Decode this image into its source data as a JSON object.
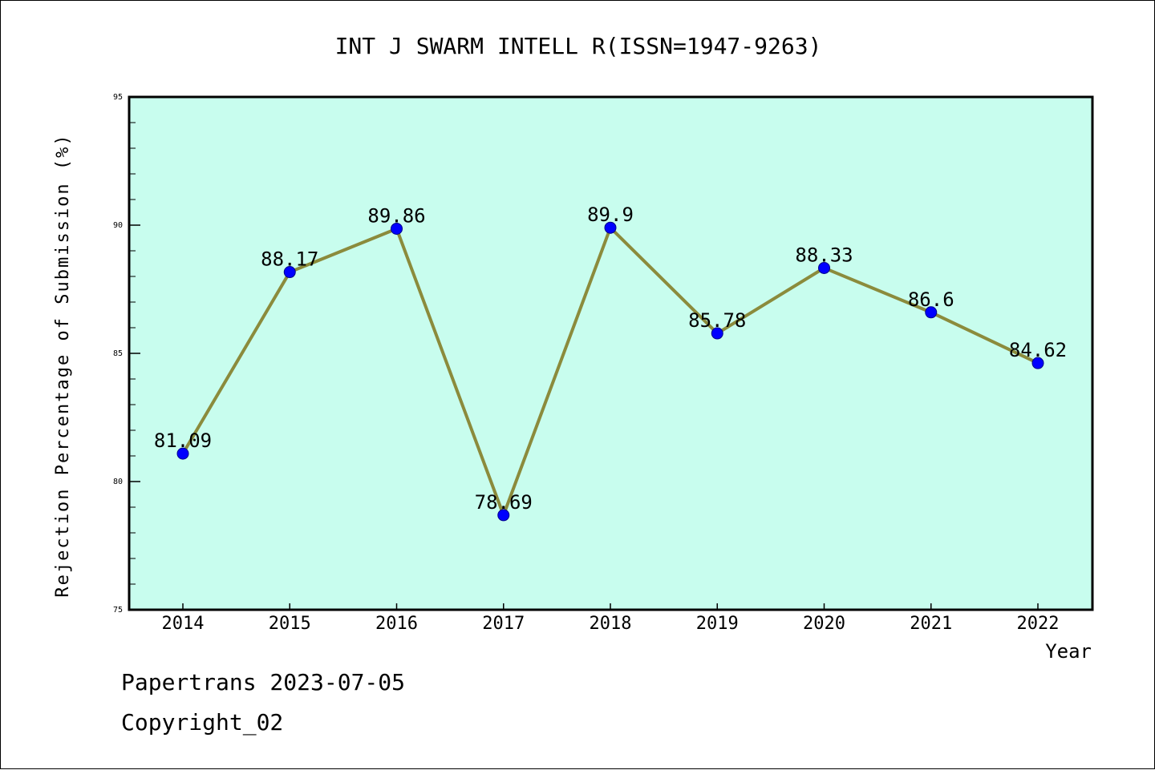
{
  "chart_data": {
    "type": "line",
    "title": "INT J SWARM INTELL R(ISSN=1947-9263)",
    "xlabel": "Year",
    "ylabel": "Rejection Percentage of Submission (%)",
    "categories": [
      "2014",
      "2015",
      "2016",
      "2017",
      "2018",
      "2019",
      "2020",
      "2021",
      "2022"
    ],
    "values": [
      81.09,
      88.17,
      89.86,
      78.69,
      89.9,
      85.78,
      88.33,
      86.6,
      84.62
    ],
    "data_labels": [
      "81.09",
      "88.17",
      "89.86",
      "78.69",
      "89.9",
      "85.78",
      "88.33",
      "86.6",
      "84.62"
    ],
    "ylim": [
      75,
      95
    ],
    "y_ticks": [
      75,
      80,
      85,
      90,
      95
    ],
    "y_tick_labels": [
      "75",
      "80",
      "85",
      "90",
      "95"
    ],
    "grid": false,
    "legend": "none",
    "colors": {
      "plot_background": "#c8fdee",
      "line": "#8b8b3c",
      "marker": "#0000ff"
    }
  },
  "footer": {
    "line1": "Papertrans 2023-07-05",
    "line2": "Copyright_02"
  }
}
